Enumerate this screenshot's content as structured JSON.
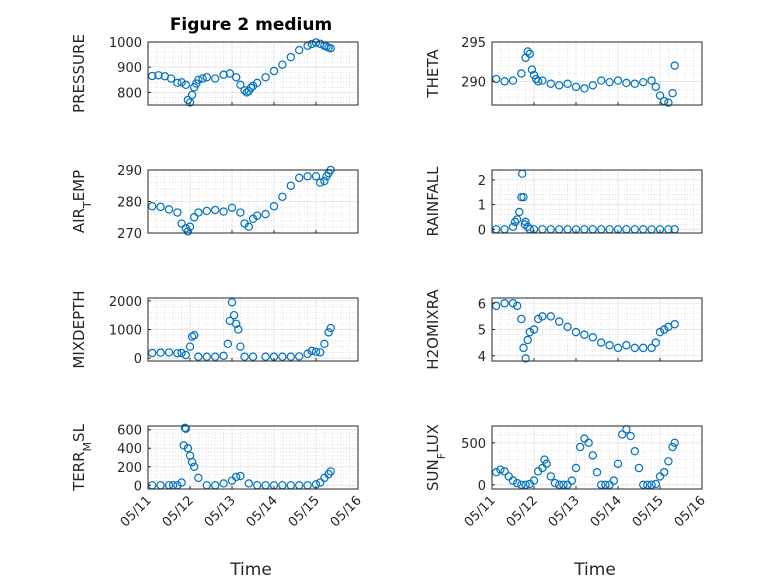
{
  "figure": {
    "title": "Figure 2 medium",
    "xlabel": "Time",
    "marker_color": "#0072BD"
  },
  "chart_data": [
    {
      "type": "scatter",
      "ylabel": "PRESSURE",
      "ylim": [
        750,
        1000
      ],
      "yticks": [
        "800",
        "900",
        "1000"
      ],
      "ytick_values": [
        800,
        900,
        1000
      ],
      "xlim": [
        0,
        5
      ],
      "xticks": [
        "05/11",
        "05/12",
        "05/13",
        "05/14",
        "05/15",
        "05/16"
      ],
      "x": [
        0.1,
        0.25,
        0.4,
        0.55,
        0.7,
        0.8,
        0.9,
        0.95,
        1.0,
        1.05,
        1.1,
        1.15,
        1.2,
        1.3,
        1.4,
        1.6,
        1.8,
        1.95,
        2.1,
        2.2,
        2.3,
        2.35,
        2.4,
        2.45,
        2.5,
        2.6,
        2.8,
        3.0,
        3.2,
        3.4,
        3.6,
        3.8,
        3.9,
        4.0,
        4.1,
        4.2,
        4.25,
        4.3,
        4.35
      ],
      "y": [
        865,
        868,
        864,
        855,
        838,
        840,
        830,
        770,
        760,
        790,
        820,
        835,
        850,
        855,
        860,
        855,
        870,
        875,
        860,
        830,
        808,
        800,
        805,
        818,
        826,
        838,
        860,
        885,
        910,
        940,
        968,
        985,
        992,
        998,
        993,
        985,
        982,
        978,
        975
      ]
    },
    {
      "type": "scatter",
      "ylabel": "THETA",
      "ylim": [
        287,
        295
      ],
      "yticks": [
        "290",
        "295"
      ],
      "ytick_values": [
        290,
        295
      ],
      "xlim": [
        0,
        5
      ],
      "xticks": [
        "05/11",
        "05/12",
        "05/13",
        "05/14",
        "05/15",
        "05/16"
      ],
      "x": [
        0.1,
        0.3,
        0.5,
        0.7,
        0.8,
        0.85,
        0.9,
        0.95,
        1.0,
        1.05,
        1.1,
        1.2,
        1.4,
        1.6,
        1.8,
        2.0,
        2.2,
        2.4,
        2.6,
        2.8,
        3.0,
        3.2,
        3.4,
        3.6,
        3.8,
        3.9,
        4.0,
        4.1,
        4.2,
        4.3,
        4.35
      ],
      "y": [
        290.3,
        290,
        290.1,
        291,
        293,
        293.8,
        293.5,
        291.5,
        290.8,
        290.3,
        290,
        290.1,
        289.7,
        289.5,
        289.7,
        289.3,
        289.1,
        289.5,
        290.1,
        289.9,
        290.1,
        289.8,
        289.7,
        289.9,
        290.1,
        289.3,
        288.2,
        287.5,
        287.3,
        288.5,
        292
      ]
    },
    {
      "type": "scatter",
      "ylabel": "AIR_TEMP",
      "ylim": [
        270,
        290
      ],
      "yticks": [
        "270",
        "280",
        "290"
      ],
      "ytick_values": [
        270,
        280,
        290
      ],
      "xlim": [
        0,
        5
      ],
      "xticks": [
        "05/11",
        "05/12",
        "05/13",
        "05/14",
        "05/15",
        "05/16"
      ],
      "x": [
        0.1,
        0.3,
        0.5,
        0.7,
        0.8,
        0.9,
        0.95,
        1.0,
        1.1,
        1.2,
        1.4,
        1.6,
        1.8,
        2.0,
        2.2,
        2.3,
        2.4,
        2.5,
        2.6,
        2.8,
        3.0,
        3.2,
        3.4,
        3.6,
        3.8,
        4.0,
        4.1,
        4.2,
        4.25,
        4.3,
        4.35
      ],
      "y": [
        278.5,
        278.3,
        277.5,
        276.5,
        273,
        271.5,
        270.5,
        272,
        275,
        276.5,
        277,
        277.3,
        276.8,
        278,
        276.5,
        273,
        272,
        274.5,
        275.5,
        276,
        278.5,
        281.5,
        285,
        287.5,
        288,
        288,
        286,
        286.5,
        288,
        289,
        290
      ]
    },
    {
      "type": "scatter",
      "ylabel": "RAINFALL",
      "ylim": [
        -0.15,
        2.4
      ],
      "yticks": [
        "0",
        "1",
        "2"
      ],
      "ytick_values": [
        0,
        1,
        2
      ],
      "xlim": [
        0,
        5
      ],
      "xticks": [
        "05/11",
        "05/12",
        "05/13",
        "05/14",
        "05/15",
        "05/16"
      ],
      "x": [
        0.1,
        0.3,
        0.5,
        0.55,
        0.6,
        0.65,
        0.7,
        0.72,
        0.75,
        0.78,
        0.8,
        0.85,
        0.9,
        1.0,
        1.2,
        1.4,
        1.6,
        1.8,
        2.0,
        2.2,
        2.4,
        2.6,
        2.8,
        3.0,
        3.2,
        3.4,
        3.6,
        3.8,
        4.0,
        4.2,
        4.35
      ],
      "y": [
        0,
        0,
        0.1,
        0.3,
        0.4,
        0.7,
        1.3,
        2.25,
        1.3,
        0.2,
        0.3,
        0.1,
        0,
        0,
        0,
        0,
        0,
        0,
        0,
        0,
        0,
        0,
        0,
        0,
        0,
        0,
        0,
        0,
        0,
        0,
        0
      ]
    },
    {
      "type": "scatter",
      "ylabel": "MIXDEPTH",
      "ylim": [
        -100,
        2100
      ],
      "yticks": [
        "0",
        "1000",
        "2000"
      ],
      "ytick_values": [
        0,
        1000,
        2000
      ],
      "xlim": [
        0,
        5
      ],
      "xticks": [
        "05/11",
        "05/12",
        "05/13",
        "05/14",
        "05/15",
        "05/16"
      ],
      "x": [
        0.1,
        0.3,
        0.5,
        0.7,
        0.8,
        0.9,
        1.0,
        1.05,
        1.1,
        1.2,
        1.4,
        1.6,
        1.8,
        1.9,
        1.95,
        2.0,
        2.05,
        2.1,
        2.15,
        2.2,
        2.3,
        2.5,
        2.8,
        3.0,
        3.2,
        3.4,
        3.6,
        3.8,
        3.9,
        4.0,
        4.1,
        4.2,
        4.3,
        4.35
      ],
      "y": [
        180,
        190,
        200,
        170,
        180,
        110,
        400,
        750,
        800,
        50,
        50,
        50,
        80,
        500,
        1300,
        1950,
        1500,
        1200,
        1000,
        400,
        50,
        50,
        50,
        50,
        50,
        50,
        60,
        150,
        250,
        220,
        200,
        500,
        900,
        1050
      ]
    },
    {
      "type": "scatter",
      "ylabel": "H2OMIXRA",
      "ylim": [
        3.8,
        6.2
      ],
      "yticks": [
        "4",
        "5",
        "6"
      ],
      "ytick_values": [
        4,
        5,
        6
      ],
      "xlim": [
        0,
        5
      ],
      "xticks": [
        "05/11",
        "05/12",
        "05/13",
        "05/14",
        "05/15",
        "05/16"
      ],
      "x": [
        0.1,
        0.3,
        0.5,
        0.6,
        0.7,
        0.75,
        0.8,
        0.85,
        0.9,
        1.0,
        1.1,
        1.2,
        1.4,
        1.6,
        1.8,
        2.0,
        2.2,
        2.4,
        2.6,
        2.8,
        3.0,
        3.2,
        3.4,
        3.6,
        3.8,
        3.9,
        4.0,
        4.1,
        4.2,
        4.35
      ],
      "y": [
        5.9,
        6.0,
        6.0,
        5.9,
        5.4,
        4.3,
        3.9,
        4.6,
        4.9,
        5.0,
        5.4,
        5.5,
        5.5,
        5.3,
        5.1,
        4.9,
        4.8,
        4.7,
        4.5,
        4.4,
        4.3,
        4.4,
        4.3,
        4.3,
        4.3,
        4.5,
        4.9,
        5.0,
        5.1,
        5.2
      ]
    },
    {
      "type": "scatter",
      "ylabel": "TERR_MSL",
      "ylim": [
        -40,
        640
      ],
      "yticks": [
        "0",
        "200",
        "400",
        "600"
      ],
      "ytick_values": [
        0,
        200,
        400,
        600
      ],
      "xlim": [
        0,
        5
      ],
      "xticks": [
        "05/11",
        "05/12",
        "05/13",
        "05/14",
        "05/15",
        "05/16"
      ],
      "x": [
        0.1,
        0.3,
        0.5,
        0.6,
        0.7,
        0.8,
        0.85,
        0.88,
        0.9,
        0.95,
        1.0,
        1.05,
        1.1,
        1.2,
        1.4,
        1.6,
        1.8,
        2.0,
        2.1,
        2.2,
        2.4,
        2.6,
        2.8,
        3.0,
        3.2,
        3.4,
        3.6,
        3.8,
        4.0,
        4.1,
        4.2,
        4.3,
        4.35
      ],
      "y": [
        0,
        0,
        0,
        0,
        0,
        30,
        430,
        620,
        610,
        400,
        320,
        250,
        200,
        80,
        0,
        0,
        20,
        50,
        90,
        100,
        20,
        0,
        0,
        0,
        0,
        0,
        0,
        0,
        10,
        30,
        80,
        120,
        150
      ]
    },
    {
      "type": "scatter",
      "ylabel": "SUN_FLUX",
      "ylim": [
        -50,
        700
      ],
      "yticks": [
        "0",
        "500"
      ],
      "ytick_values": [
        0,
        500
      ],
      "xlim": [
        0,
        5
      ],
      "xticks": [
        "05/11",
        "05/12",
        "05/13",
        "05/14",
        "05/15",
        "05/16"
      ],
      "x": [
        0.1,
        0.2,
        0.3,
        0.4,
        0.5,
        0.6,
        0.7,
        0.8,
        0.9,
        1.0,
        1.1,
        1.2,
        1.25,
        1.3,
        1.4,
        1.5,
        1.6,
        1.7,
        1.8,
        1.9,
        2.0,
        2.1,
        2.2,
        2.3,
        2.4,
        2.5,
        2.6,
        2.7,
        2.8,
        2.9,
        3.0,
        3.1,
        3.2,
        3.3,
        3.4,
        3.5,
        3.6,
        3.7,
        3.8,
        3.9,
        4.0,
        4.1,
        4.2,
        4.3,
        4.35
      ],
      "y": [
        150,
        180,
        160,
        100,
        50,
        20,
        0,
        0,
        10,
        50,
        160,
        200,
        300,
        250,
        100,
        20,
        0,
        0,
        0,
        50,
        200,
        450,
        550,
        500,
        350,
        150,
        0,
        0,
        0,
        50,
        250,
        600,
        660,
        580,
        400,
        200,
        0,
        0,
        0,
        10,
        100,
        150,
        280,
        450,
        500
      ]
    }
  ]
}
